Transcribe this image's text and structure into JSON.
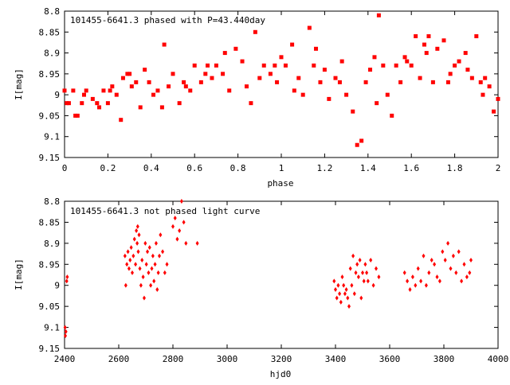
{
  "chart_data": [
    {
      "type": "scatter",
      "title": "101455-6641.3 phased with P=43.440day",
      "xlabel": "phase",
      "ylabel": "I[mag]",
      "xlim": [
        0,
        2
      ],
      "ylim": [
        8.8,
        9.15
      ],
      "y_inverted": true,
      "grid": false,
      "xticks": [
        "0",
        "0.2",
        "0.4",
        "0.6",
        "0.8",
        "1",
        "1.2",
        "1.4",
        "1.6",
        "1.8",
        "2"
      ],
      "yticks": [
        "8.8",
        "8.85",
        "8.9",
        "8.95",
        "9",
        "9.05",
        "9.1",
        "9.15"
      ],
      "marker": "filled-square",
      "color": "#ff0000",
      "x": [
        0.0,
        0.02,
        0.04,
        0.06,
        0.08,
        0.1,
        0.13,
        0.16,
        0.18,
        0.2,
        0.22,
        0.24,
        0.26,
        0.27,
        0.29,
        0.31,
        0.33,
        0.35,
        0.37,
        0.39,
        0.41,
        0.43,
        0.46,
        0.48,
        0.5,
        0.53,
        0.55,
        0.58,
        0.6,
        0.63,
        0.65,
        0.68,
        0.7,
        0.73,
        0.76,
        0.79,
        0.82,
        0.84,
        0.88,
        0.9,
        0.92,
        0.95,
        0.98,
        1.0,
        1.02,
        1.05,
        1.08,
        1.1,
        1.13,
        1.15,
        1.18,
        1.2,
        1.22,
        1.25,
        1.28,
        1.3,
        1.33,
        1.35,
        1.37,
        1.39,
        1.41,
        1.43,
        1.45,
        1.47,
        1.49,
        1.51,
        1.53,
        1.55,
        1.57,
        1.6,
        1.62,
        1.64,
        1.66,
        1.68,
        1.7,
        1.72,
        1.75,
        1.78,
        1.8,
        1.82,
        1.85,
        1.88,
        1.9,
        1.92,
        1.94,
        1.96,
        1.98,
        2.0,
        0.01,
        0.05,
        0.09,
        0.15,
        0.21,
        0.3,
        0.45,
        0.56,
        0.66,
        0.74,
        0.86,
        0.97,
        1.06,
        1.16,
        1.27,
        1.44,
        1.58,
        1.67,
        1.77,
        1.86,
        1.93
      ],
      "y": [
        8.99,
        9.02,
        8.99,
        9.05,
        9.02,
        8.99,
        9.01,
        9.03,
        8.99,
        9.02,
        8.98,
        9.0,
        9.06,
        8.96,
        8.95,
        8.98,
        8.97,
        9.03,
        8.94,
        8.97,
        9.0,
        8.99,
        8.88,
        8.98,
        8.95,
        9.02,
        8.97,
        8.99,
        8.93,
        8.97,
        8.95,
        8.96,
        8.93,
        8.95,
        8.99,
        8.89,
        8.92,
        8.98,
        8.85,
        8.96,
        8.93,
        8.95,
        8.97,
        8.91,
        8.93,
        8.88,
        8.96,
        9.0,
        8.84,
        8.93,
        8.97,
        8.94,
        9.01,
        8.96,
        8.92,
        9.0,
        9.04,
        9.12,
        9.11,
        8.97,
        8.94,
        8.91,
        8.81,
        8.93,
        9.0,
        9.05,
        8.93,
        8.97,
        8.91,
        8.93,
        8.86,
        8.96,
        8.88,
        8.86,
        8.97,
        8.89,
        8.87,
        8.95,
        8.93,
        8.92,
        8.9,
        8.96,
        8.86,
        8.97,
        8.96,
        8.98,
        9.04,
        9.01,
        9.02,
        9.05,
        9.0,
        9.02,
        8.99,
        8.95,
        9.03,
        8.98,
        8.93,
        8.9,
        9.02,
        8.93,
        8.99,
        8.89,
        8.97,
        9.02,
        8.92,
        8.9,
        8.97,
        8.94,
        9.0
      ]
    },
    {
      "type": "scatter",
      "title": "101455-6641.3 not phased light curve",
      "xlabel": "hjd0",
      "ylabel": "I[mag]",
      "xlim": [
        2400,
        4000
      ],
      "ylim": [
        8.8,
        9.15
      ],
      "y_inverted": true,
      "grid": false,
      "xticks": [
        "2400",
        "2600",
        "2800",
        "3000",
        "3200",
        "3400",
        "3600",
        "3800",
        "4000"
      ],
      "yticks": [
        "8.8",
        "8.85",
        "8.9",
        "8.95",
        "9",
        "9.05",
        "9.1",
        "9.15"
      ],
      "marker": "small-diamond",
      "color": "#ff0000",
      "x": [
        2402,
        2403,
        2405,
        2408,
        2410,
        2623,
        2626,
        2630,
        2634,
        2638,
        2642,
        2646,
        2650,
        2654,
        2658,
        2662,
        2665,
        2668,
        2670,
        2672,
        2675,
        2678,
        2682,
        2686,
        2690,
        2694,
        2698,
        2702,
        2706,
        2710,
        2714,
        2718,
        2722,
        2726,
        2730,
        2734,
        2738,
        2742,
        2746,
        2750,
        2754,
        2762,
        2770,
        2778,
        2800,
        2808,
        2816,
        2824,
        2832,
        2840,
        2848,
        2890,
        3395,
        3400,
        3405,
        3410,
        3415,
        3420,
        3425,
        3430,
        3435,
        3440,
        3445,
        3450,
        3455,
        3460,
        3465,
        3470,
        3475,
        3480,
        3485,
        3490,
        3495,
        3500,
        3505,
        3510,
        3515,
        3520,
        3530,
        3540,
        3550,
        3560,
        3655,
        3665,
        3675,
        3685,
        3695,
        3705,
        3715,
        3725,
        3735,
        3745,
        3755,
        3765,
        3775,
        3785,
        3795,
        3805,
        3815,
        3825,
        3835,
        3845,
        3855,
        3865,
        3875,
        3885,
        3895,
        3900
      ],
      "y": [
        9.1,
        9.12,
        9.11,
        8.99,
        8.98,
        8.93,
        9.0,
        8.95,
        8.92,
        8.96,
        8.94,
        8.91,
        8.97,
        8.93,
        8.89,
        8.95,
        8.87,
        8.9,
        8.86,
        8.92,
        8.88,
        8.96,
        9.0,
        8.94,
        8.98,
        9.03,
        8.9,
        8.95,
        8.92,
        8.97,
        8.91,
        9.0,
        8.96,
        8.93,
        8.99,
        8.95,
        8.9,
        9.01,
        8.97,
        8.93,
        8.88,
        8.92,
        8.97,
        8.95,
        8.86,
        8.84,
        8.89,
        8.87,
        8.8,
        8.85,
        8.9,
        8.9,
        8.99,
        9.01,
        9.03,
        9.0,
        9.02,
        9.04,
        8.98,
        9.0,
        9.02,
        9.01,
        9.03,
        9.05,
        8.96,
        9.0,
        8.93,
        9.02,
        8.97,
        8.95,
        8.98,
        8.94,
        9.03,
        8.97,
        8.99,
        8.95,
        8.97,
        8.99,
        8.94,
        9.0,
        8.96,
        8.98,
        8.97,
        8.99,
        9.01,
        8.98,
        9.0,
        8.96,
        8.99,
        8.93,
        9.0,
        8.97,
        8.94,
        8.95,
        8.98,
        8.99,
        8.92,
        8.94,
        8.9,
        8.96,
        8.93,
        8.97,
        8.92,
        8.99,
        8.95,
        8.98,
        8.97,
        8.94
      ]
    }
  ]
}
